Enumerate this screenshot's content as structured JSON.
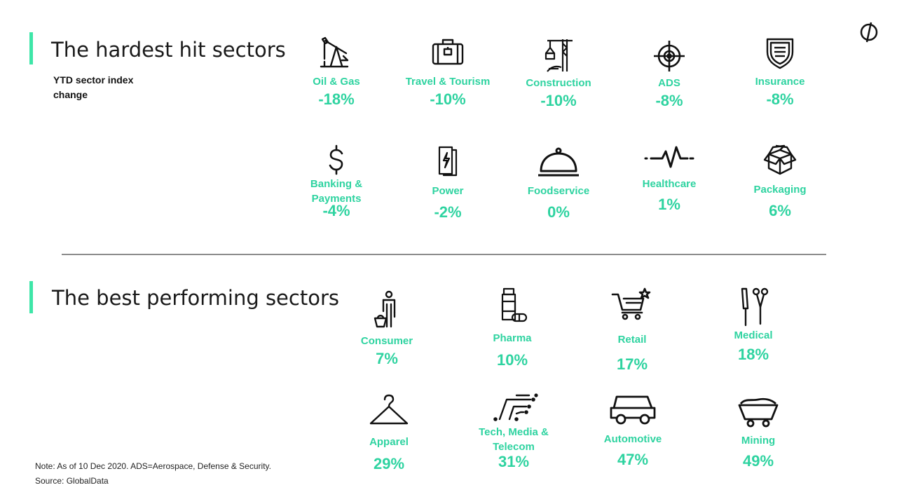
{
  "hardest": {
    "title": "The hardest hit sectors",
    "subtitle": "YTD sector index change",
    "sectors": [
      {
        "name": "Oil & Gas",
        "value": "-18%",
        "icon": "oil-pump-icon"
      },
      {
        "name": "Travel & Tourism",
        "value": "-10%",
        "icon": "suitcase-icon"
      },
      {
        "name": "Construction",
        "value": "-10%",
        "icon": "crane-icon"
      },
      {
        "name": "ADS",
        "value": "-8%",
        "icon": "crosshair-icon"
      },
      {
        "name": "Insurance",
        "value": "-8%",
        "icon": "shield-icon"
      },
      {
        "name": "Banking & Payments",
        "value": "-4%",
        "icon": "dollar-icon"
      },
      {
        "name": "Power",
        "value": "-2%",
        "icon": "battery-bolt-icon"
      },
      {
        "name": "Foodservice",
        "value": "0%",
        "icon": "cloche-icon"
      },
      {
        "name": "Healthcare",
        "value": "1%",
        "icon": "heartbeat-icon"
      },
      {
        "name": "Packaging",
        "value": "6%",
        "icon": "box-icon"
      }
    ]
  },
  "best": {
    "title": "The best performing sectors",
    "sectors": [
      {
        "name": "Consumer",
        "value": "7%",
        "icon": "shopper-icon"
      },
      {
        "name": "Pharma",
        "value": "10%",
        "icon": "pill-bottle-icon"
      },
      {
        "name": "Retail",
        "value": "17%",
        "icon": "shopping-cart-icon"
      },
      {
        "name": "Medical",
        "value": "18%",
        "icon": "scalpel-scissors-icon"
      },
      {
        "name": "Apparel",
        "value": "29%",
        "icon": "hanger-icon"
      },
      {
        "name": "Tech, Media & Telecom",
        "value": "31%",
        "icon": "circuit-icon"
      },
      {
        "name": "Automotive",
        "value": "47%",
        "icon": "car-icon"
      },
      {
        "name": "Mining",
        "value": "49%",
        "icon": "mine-cart-icon"
      }
    ]
  },
  "footer": {
    "note": "Note: As of 10 Dec 2020. ADS=Aerospace, Defense & Security.",
    "source": "Source: GlobalData"
  },
  "colors": {
    "accent": "#2ed3a0",
    "bar": "#3ee6a8",
    "divider": "#8c8c8c"
  }
}
